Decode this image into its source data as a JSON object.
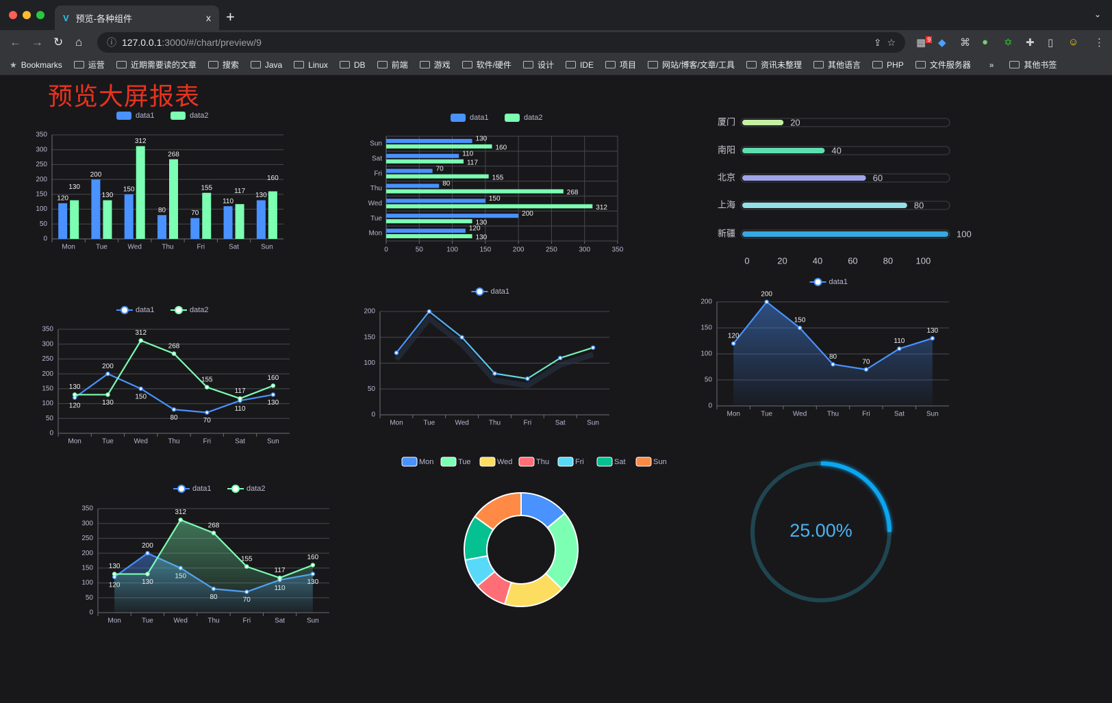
{
  "browser": {
    "tab_title": "预览-各种组件",
    "tab_close": "x",
    "new_tab": "+",
    "tab_menu": "⌄",
    "url_host": "127.0.0.1",
    "url_path": ":3000/#/chart/preview/9",
    "extension_badge": "9",
    "bookmarks_label": "Bookmarks",
    "bookmarks": [
      "运营",
      "近期需要读的文章",
      "搜索",
      "Java",
      "Linux",
      "DB",
      "前端",
      "游戏",
      "软件/硬件",
      "设计",
      "IDE",
      "项目",
      "网站/博客/文章/工具",
      "资讯未整理",
      "其他语言",
      "PHP",
      "文件服务器"
    ],
    "more": "»",
    "other_bookmarks": "其他书签"
  },
  "page": {
    "title": "预览大屏报表"
  },
  "colors": {
    "data1": "#4992ff",
    "data2": "#7cffb2",
    "title": "#e8331e",
    "gauge": "#0ea5f0"
  },
  "chart_data": [
    {
      "type": "bar",
      "categories": [
        "Mon",
        "Tue",
        "Wed",
        "Thu",
        "Fri",
        "Sat",
        "Sun"
      ],
      "ylim": [
        0,
        350
      ],
      "yticks": [
        "0",
        "50",
        "100",
        "150",
        "200",
        "250",
        "300",
        "350"
      ],
      "legend": "top",
      "series": [
        {
          "name": "data1",
          "values": [
            120,
            200,
            150,
            80,
            70,
            110,
            130
          ]
        },
        {
          "name": "data2",
          "values": [
            130,
            130,
            312,
            268,
            155,
            117,
            160
          ]
        }
      ]
    },
    {
      "type": "bar",
      "orientation": "horizontal",
      "categories": [
        "Mon",
        "Tue",
        "Wed",
        "Thu",
        "Fri",
        "Sat",
        "Sun"
      ],
      "xlim": [
        0,
        350
      ],
      "xticks": [
        "0",
        "50",
        "100",
        "150",
        "200",
        "250",
        "300",
        "350"
      ],
      "legend": "top",
      "series": [
        {
          "name": "data1",
          "values": [
            120,
            200,
            150,
            80,
            70,
            110,
            130
          ]
        },
        {
          "name": "data2",
          "values": [
            130,
            130,
            312,
            268,
            155,
            117,
            160
          ]
        }
      ]
    },
    {
      "type": "bar",
      "orientation": "horizontal",
      "style": "progress",
      "categories": [
        "厦门",
        "南阳",
        "北京",
        "上海",
        "新疆"
      ],
      "values": [
        20,
        40,
        60,
        80,
        100
      ],
      "xlim": [
        0,
        100
      ],
      "xticks": [
        "0",
        "20",
        "40",
        "60",
        "80",
        "100"
      ],
      "colors": [
        "#c5f0a4",
        "#5fdfae",
        "#a0a4e8",
        "#93e1e6",
        "#36a9e1"
      ]
    },
    {
      "type": "line",
      "categories": [
        "Mon",
        "Tue",
        "Wed",
        "Thu",
        "Fri",
        "Sat",
        "Sun"
      ],
      "ylim": [
        0,
        350
      ],
      "yticks": [
        "0",
        "50",
        "100",
        "150",
        "200",
        "250",
        "300",
        "350"
      ],
      "legend": "top",
      "series": [
        {
          "name": "data1",
          "values": [
            120,
            200,
            150,
            80,
            70,
            110,
            130
          ]
        },
        {
          "name": "data2",
          "values": [
            130,
            130,
            312,
            268,
            155,
            117,
            160
          ]
        }
      ]
    },
    {
      "type": "line",
      "categories": [
        "Mon",
        "Tue",
        "Wed",
        "Thu",
        "Fri",
        "Sat",
        "Sun"
      ],
      "ylim": [
        0,
        200
      ],
      "yticks": [
        "0",
        "50",
        "100",
        "150",
        "200"
      ],
      "legend": "top",
      "series": [
        {
          "name": "data1",
          "values": [
            120,
            200,
            150,
            80,
            70,
            110,
            130
          ]
        }
      ]
    },
    {
      "type": "area",
      "categories": [
        "Mon",
        "Tue",
        "Wed",
        "Thu",
        "Fri",
        "Sat",
        "Sun"
      ],
      "ylim": [
        0,
        200
      ],
      "yticks": [
        "0",
        "50",
        "100",
        "150",
        "200"
      ],
      "legend": "top",
      "series": [
        {
          "name": "data1",
          "values": [
            120,
            200,
            150,
            80,
            70,
            110,
            130
          ]
        }
      ]
    },
    {
      "type": "area",
      "categories": [
        "Mon",
        "Tue",
        "Wed",
        "Thu",
        "Fri",
        "Sat",
        "Sun"
      ],
      "ylim": [
        0,
        350
      ],
      "yticks": [
        "0",
        "50",
        "100",
        "150",
        "200",
        "250",
        "300",
        "350"
      ],
      "legend": "top",
      "series": [
        {
          "name": "data1",
          "values": [
            120,
            200,
            150,
            80,
            70,
            110,
            130
          ]
        },
        {
          "name": "data2",
          "values": [
            130,
            130,
            312,
            268,
            155,
            117,
            160
          ]
        }
      ]
    },
    {
      "type": "pie",
      "style": "donut",
      "legend": "top",
      "categories": [
        "Mon",
        "Tue",
        "Wed",
        "Thu",
        "Fri",
        "Sat",
        "Sun"
      ],
      "values": [
        120,
        200,
        150,
        80,
        70,
        110,
        130
      ],
      "colors": [
        "#4992ff",
        "#7cffb2",
        "#fddd60",
        "#ff6e76",
        "#58d9f9",
        "#05c091",
        "#ff8a45"
      ]
    },
    {
      "type": "gauge",
      "value": 25,
      "label": "25.00%"
    }
  ]
}
